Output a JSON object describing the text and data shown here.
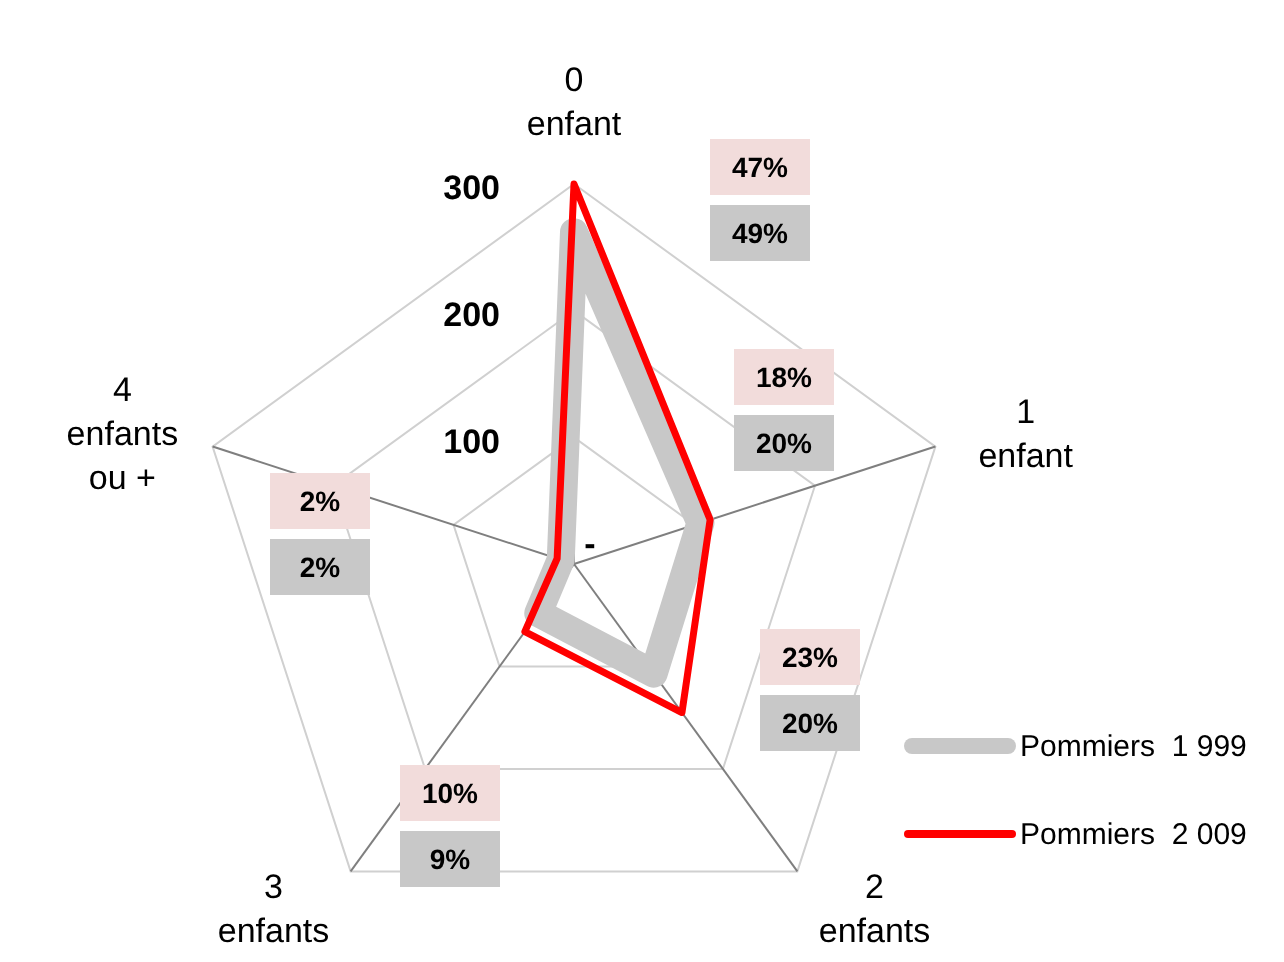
{
  "chart_data": {
    "type": "radar",
    "categories": [
      "0 enfant",
      "1 enfant",
      "2 enfants",
      "3 enfants",
      "4 enfants ou +"
    ],
    "ylim": [
      0,
      300
    ],
    "yticks": [
      {
        "value": 0,
        "label": "-"
      },
      100,
      200,
      300
    ],
    "grid": true,
    "legend": "right",
    "marker": "none",
    "annotations": [
      "47%",
      "49%",
      "18%",
      "20%",
      "23%",
      "20%",
      "10%",
      "9%",
      "2%",
      "2%"
    ],
    "series": [
      {
        "name": "Pommiers  1 999",
        "color": "#c8c8c8",
        "values": [
          262,
          105,
          107,
          48,
          11
        ]
      },
      {
        "name": "Pommiers  2 009",
        "color": "#ff0000",
        "values": [
          300,
          113,
          145,
          66,
          14
        ]
      }
    ]
  }
}
